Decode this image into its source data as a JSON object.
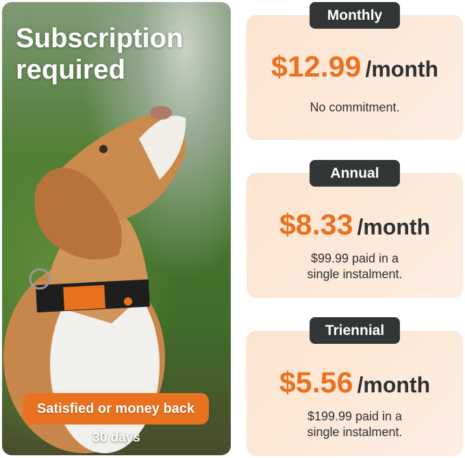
{
  "hero": {
    "title_line1": "Subscription",
    "title_line2": "required",
    "guarantee_label": "Satisfied or money back",
    "guarantee_period": "30 days"
  },
  "plans": [
    {
      "name": "Monthly",
      "price": "$12.99",
      "period": "/month",
      "note_line1": "No commitment.",
      "note_line2": ""
    },
    {
      "name": "Annual",
      "price": "$8.33",
      "period": "/month",
      "note_line1": "$99.99 paid in a",
      "note_line2": "single instalment."
    },
    {
      "name": "Triennial",
      "price": "$5.56",
      "period": "/month",
      "note_line1": "$199.99 paid in a",
      "note_line2": "single instalment."
    }
  ],
  "colors": {
    "accent": "#e8721f",
    "badge": "#333636",
    "card": "#fbe3cf"
  }
}
